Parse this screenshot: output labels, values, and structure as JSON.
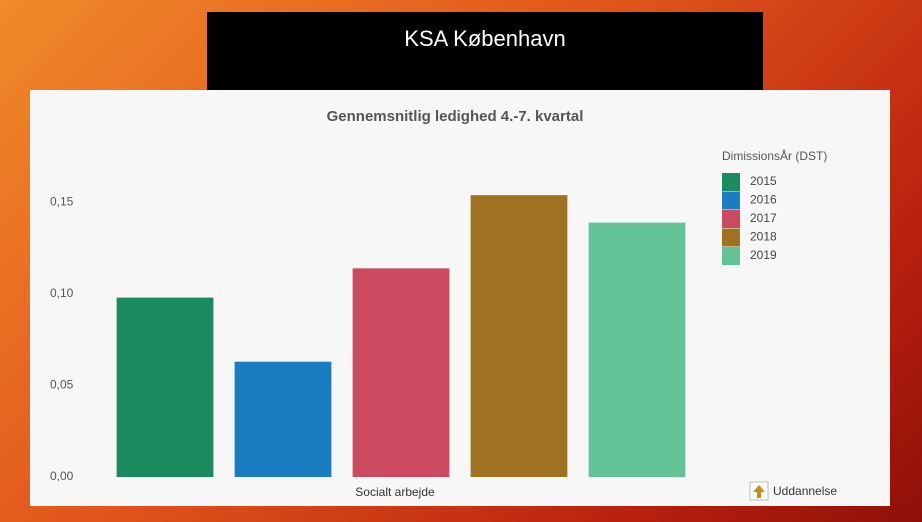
{
  "header": {
    "title": "KSA København"
  },
  "button": {
    "label": "Uddannelse"
  },
  "chart_data": {
    "type": "bar",
    "title": "Gennemsnitlig ledighed 4.-7. kvartal",
    "legend_title": "DimissionsÅr (DST)",
    "legend_position": "right",
    "categories": [
      "Socialt arbejde"
    ],
    "series": [
      {
        "name": "2015",
        "color": "#1b8a5f",
        "values": [
          0.098
        ]
      },
      {
        "name": "2016",
        "color": "#1a7dc0",
        "values": [
          0.063
        ]
      },
      {
        "name": "2017",
        "color": "#cc4a5f",
        "values": [
          0.114
        ]
      },
      {
        "name": "2018",
        "color": "#9e7220",
        "values": [
          0.154
        ]
      },
      {
        "name": "2019",
        "color": "#63c397",
        "values": [
          0.139
        ]
      }
    ],
    "ylim": [
      0,
      0.165
    ],
    "yticks": [
      {
        "value": 0,
        "label": "0,00"
      },
      {
        "value": 0.05,
        "label": "0,05"
      },
      {
        "value": 0.1,
        "label": "0,10"
      },
      {
        "value": 0.15,
        "label": "0,15"
      }
    ],
    "grid": false
  }
}
